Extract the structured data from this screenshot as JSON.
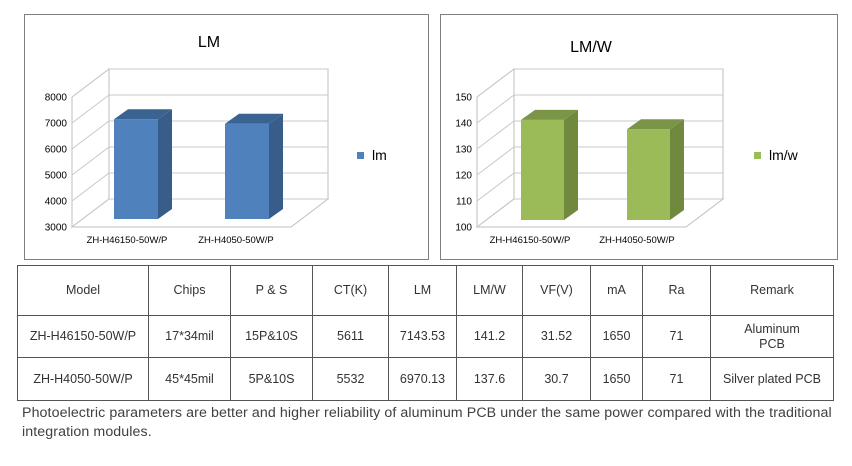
{
  "chart_data": [
    {
      "type": "bar",
      "title": "LM",
      "categories": [
        "ZH-H46150-50W/P",
        "ZH-H4050-50W/P"
      ],
      "series": [
        {
          "name": "lm",
          "values": [
            7143.53,
            6970.13
          ]
        }
      ],
      "ylim": [
        3000,
        8000
      ],
      "ticks": [
        3000,
        4000,
        5000,
        6000,
        7000,
        8000
      ],
      "xlabel": "",
      "ylabel": "",
      "legend": "right",
      "color": "#4f81bd",
      "color_dark": "#385d8a",
      "color_top": "#3a6391"
    },
    {
      "type": "bar",
      "title": "LM/W",
      "categories": [
        "ZH-H46150-50W/P",
        "ZH-H4050-50W/P"
      ],
      "series": [
        {
          "name": "lm/w",
          "values": [
            141.2,
            137.6
          ]
        }
      ],
      "ylim": [
        100,
        150
      ],
      "ticks": [
        100,
        110,
        120,
        130,
        140,
        150
      ],
      "xlabel": "",
      "ylabel": "",
      "legend": "right",
      "color": "#9bbb59",
      "color_dark": "#71893f",
      "color_top": "#7a9548"
    }
  ],
  "table": {
    "headers": [
      "Model",
      "Chips",
      "P & S",
      "CT(K)",
      "LM",
      "LM/W",
      "VF(V)",
      "mA",
      "Ra",
      "Remark"
    ],
    "rows": [
      [
        "ZH-H46150-50W/P",
        "17*34mil",
        "15P&10S",
        "5611",
        "7143.53",
        "141.2",
        "31.52",
        "1650",
        "71",
        "Aluminum PCB"
      ],
      [
        "ZH-H4050-50W/P",
        "45*45mil",
        "5P&10S",
        "5532",
        "6970.13",
        "137.6",
        "30.7",
        "1650",
        "71",
        "Silver plated PCB"
      ]
    ]
  },
  "footnote": "Photoelectric parameters are better and higher reliability of aluminum PCB under the same power compared with the traditional integration modules."
}
